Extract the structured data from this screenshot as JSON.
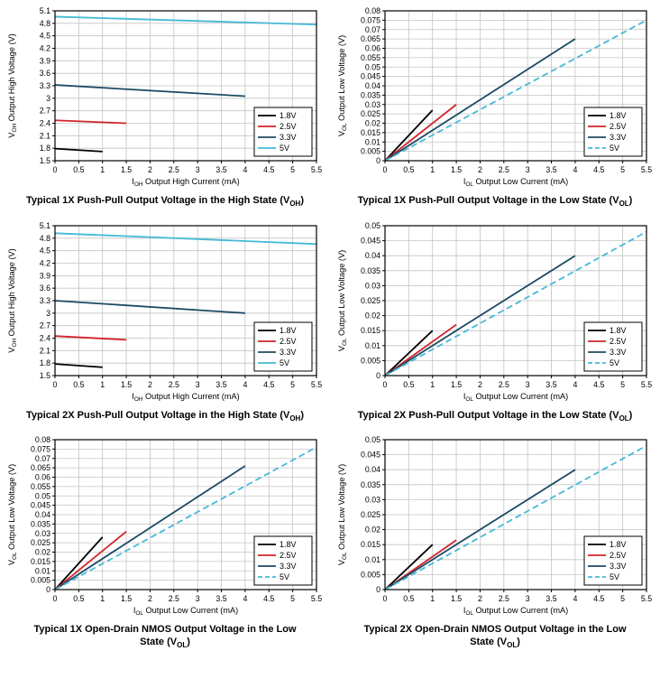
{
  "page": {
    "background": "#ffffff",
    "grid_color": "#c3c3c3",
    "axis_color": "#000000"
  },
  "chart_data": [
    {
      "id": "voh-1x",
      "type": "line",
      "title": "Typical 1X Push-Pull Output Voltage in the High State (V_OH_)",
      "xlabel": "I_OH_ Output High Current (mA)",
      "ylabel": "V_OH_ Output High Voltage (V)",
      "xlim": [
        0,
        5.5
      ],
      "xtick_step": 0.5,
      "ylim": [
        1.5,
        5.1
      ],
      "ytick_step": 0.3,
      "grid": true,
      "legend_position": "bottom-right",
      "series": [
        {
          "name": "1.8V",
          "color": "#000000",
          "dash": null,
          "x": [
            0,
            1
          ],
          "y": [
            1.79,
            1.72
          ]
        },
        {
          "name": "2.5V",
          "color": "#d2232a",
          "dash": null,
          "x": [
            0,
            1.5
          ],
          "y": [
            2.47,
            2.4
          ]
        },
        {
          "name": "3.3V",
          "color": "#1c4966",
          "dash": null,
          "x": [
            0,
            4
          ],
          "y": [
            3.32,
            3.05
          ]
        },
        {
          "name": "5V",
          "color": "#45b9d6",
          "dash": null,
          "x": [
            0,
            5.5
          ],
          "y": [
            4.96,
            4.77
          ]
        }
      ]
    },
    {
      "id": "vol-1x",
      "type": "line",
      "title": "Typical 1X Push-Pull Output Voltage in the Low State (V_OL_)",
      "xlabel": "I_OL_ Output Low Current (mA)",
      "ylabel": "V_OL_ Output Low Voltage (V)",
      "xlim": [
        0,
        5.5
      ],
      "xtick_step": 0.5,
      "ylim": [
        0,
        0.08
      ],
      "ytick_step": 0.005,
      "grid": true,
      "legend_position": "bottom-right",
      "series": [
        {
          "name": "1.8V",
          "color": "#000000",
          "dash": null,
          "x": [
            0,
            1
          ],
          "y": [
            0,
            0.027
          ]
        },
        {
          "name": "2.5V",
          "color": "#d2232a",
          "dash": null,
          "x": [
            0,
            1.5
          ],
          "y": [
            0,
            0.03
          ]
        },
        {
          "name": "3.3V",
          "color": "#1c4966",
          "dash": null,
          "x": [
            0,
            4
          ],
          "y": [
            0,
            0.065
          ]
        },
        {
          "name": "5V",
          "color": "#45b9d6",
          "dash": "7 4",
          "x": [
            0,
            5.5
          ],
          "y": [
            0,
            0.075
          ]
        }
      ]
    },
    {
      "id": "voh-2x",
      "type": "line",
      "title": "Typical 2X Push-Pull Output Voltage in the High State (V_OH_)",
      "xlabel": "I_OH_ Output High Current (mA)",
      "ylabel": "V_OH_ Output High Voltage (V)",
      "xlim": [
        0,
        5.5
      ],
      "xtick_step": 0.5,
      "ylim": [
        1.5,
        5.1
      ],
      "ytick_step": 0.3,
      "grid": true,
      "legend_position": "bottom-right",
      "series": [
        {
          "name": "1.8V",
          "color": "#000000",
          "dash": null,
          "x": [
            0,
            1
          ],
          "y": [
            1.78,
            1.7
          ]
        },
        {
          "name": "2.5V",
          "color": "#d2232a",
          "dash": null,
          "x": [
            0,
            1.5
          ],
          "y": [
            2.45,
            2.36
          ]
        },
        {
          "name": "3.3V",
          "color": "#1c4966",
          "dash": null,
          "x": [
            0,
            4
          ],
          "y": [
            3.3,
            3.0
          ]
        },
        {
          "name": "5V",
          "color": "#45b9d6",
          "dash": null,
          "x": [
            0,
            5.5
          ],
          "y": [
            4.92,
            4.66
          ]
        }
      ]
    },
    {
      "id": "vol-2x",
      "type": "line",
      "title": "Typical 2X Push-Pull Output Voltage in the Low State (V_OL_)",
      "xlabel": "I_OL_ Output Low Current (mA)",
      "ylabel": "V_OL_ Output Low Voltage (V)",
      "xlim": [
        0,
        5.5
      ],
      "xtick_step": 0.5,
      "ylim": [
        0,
        0.05
      ],
      "ytick_step": 0.005,
      "grid": true,
      "legend_position": "bottom-right",
      "series": [
        {
          "name": "1.8V",
          "color": "#000000",
          "dash": null,
          "x": [
            0,
            1
          ],
          "y": [
            0,
            0.015
          ]
        },
        {
          "name": "2.5V",
          "color": "#d2232a",
          "dash": null,
          "x": [
            0,
            1.5
          ],
          "y": [
            0,
            0.017
          ]
        },
        {
          "name": "3.3V",
          "color": "#1c4966",
          "dash": null,
          "x": [
            0,
            4
          ],
          "y": [
            0,
            0.04
          ]
        },
        {
          "name": "5V",
          "color": "#45b9d6",
          "dash": "7 4",
          "x": [
            0,
            5.5
          ],
          "y": [
            0,
            0.048
          ]
        }
      ]
    },
    {
      "id": "od-vol-1x",
      "type": "line",
      "title": "Typical 1X Open-Drain NMOS Output Voltage in the Low State (V_OL_)",
      "xlabel": "I_OL_ Output Low Current (mA)",
      "ylabel": "V_OL_ Output Low Voltage (V)",
      "xlim": [
        0,
        5.5
      ],
      "xtick_step": 0.5,
      "ylim": [
        0,
        0.08
      ],
      "ytick_step": 0.005,
      "grid": true,
      "legend_position": "bottom-right",
      "series": [
        {
          "name": "1.8V",
          "color": "#000000",
          "dash": null,
          "x": [
            0,
            1
          ],
          "y": [
            0,
            0.028
          ]
        },
        {
          "name": "2.5V",
          "color": "#d2232a",
          "dash": null,
          "x": [
            0,
            1.5
          ],
          "y": [
            0,
            0.031
          ]
        },
        {
          "name": "3.3V",
          "color": "#1c4966",
          "dash": null,
          "x": [
            0,
            4
          ],
          "y": [
            0,
            0.066
          ]
        },
        {
          "name": "5V",
          "color": "#45b9d6",
          "dash": "7 4",
          "x": [
            0,
            5.5
          ],
          "y": [
            0,
            0.076
          ]
        }
      ]
    },
    {
      "id": "od-vol-2x",
      "type": "line",
      "title": "Typical 2X Open-Drain NMOS Output Voltage in the Low State (V_OL_)",
      "xlabel": "I_OL_ Output Low Current (mA)",
      "ylabel": "V_OL_ Output Low Voltage (V)",
      "xlim": [
        0,
        5.5
      ],
      "xtick_step": 0.5,
      "ylim": [
        0,
        0.05
      ],
      "ytick_step": 0.005,
      "grid": true,
      "legend_position": "bottom-right",
      "series": [
        {
          "name": "1.8V",
          "color": "#000000",
          "dash": null,
          "x": [
            0,
            1
          ],
          "y": [
            0,
            0.015
          ]
        },
        {
          "name": "2.5V",
          "color": "#d2232a",
          "dash": null,
          "x": [
            0,
            1.5
          ],
          "y": [
            0,
            0.0165
          ]
        },
        {
          "name": "3.3V",
          "color": "#1c4966",
          "dash": null,
          "x": [
            0,
            4
          ],
          "y": [
            0,
            0.04
          ]
        },
        {
          "name": "5V",
          "color": "#45b9d6",
          "dash": "7 4",
          "x": [
            0,
            5.5
          ],
          "y": [
            0,
            0.048
          ]
        }
      ]
    }
  ]
}
